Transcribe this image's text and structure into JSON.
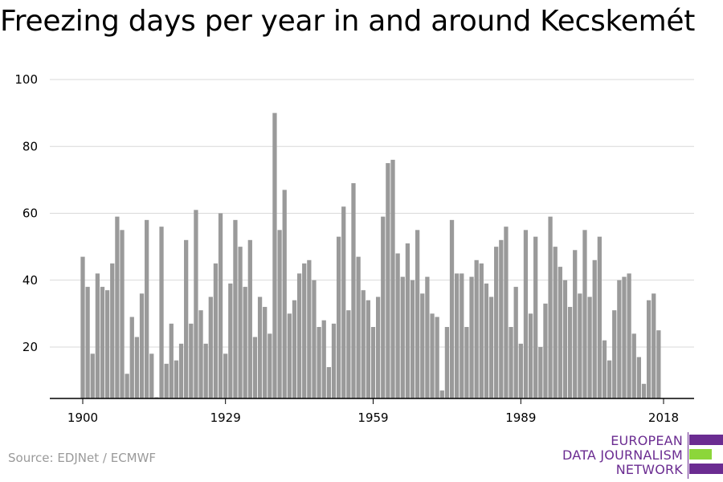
{
  "header": {
    "title": "Freezing days per year in and around Kecskemét"
  },
  "footer": {
    "source": "Source: EDJNet / ECMWF"
  },
  "logo": {
    "line1": "EUROPEAN",
    "line2": "DATA JOURNALISM",
    "line3": "NETWORK",
    "colors": {
      "purple": "#6b2c91",
      "green": "#8cd63a"
    }
  },
  "chart_data": {
    "type": "bar",
    "title": "Freezing days per year in and around Kecskemét",
    "xlabel": "",
    "ylabel": "",
    "x_start": 1900,
    "x_end": 2018,
    "xticks": [
      1900,
      1929,
      1959,
      1989,
      2018
    ],
    "yticks": [
      20,
      40,
      60,
      80,
      100
    ],
    "ylim": [
      5,
      100
    ],
    "grid": true,
    "bar_color": "#9a9a9a",
    "values": [
      47,
      38,
      18,
      42,
      38,
      37,
      45,
      59,
      55,
      12,
      29,
      23,
      36,
      58,
      18,
      5,
      56,
      15,
      27,
      16,
      21,
      52,
      27,
      61,
      31,
      21,
      35,
      45,
      60,
      18,
      39,
      58,
      50,
      38,
      52,
      23,
      35,
      32,
      24,
      90,
      55,
      67,
      30,
      34,
      42,
      45,
      46,
      40,
      26,
      28,
      14,
      27,
      53,
      62,
      31,
      69,
      47,
      37,
      34,
      26,
      35,
      59,
      75,
      76,
      48,
      41,
      51,
      40,
      55,
      36,
      41,
      30,
      29,
      7,
      26,
      58,
      42,
      42,
      26,
      41,
      46,
      45,
      39,
      35,
      50,
      52,
      56,
      26,
      38,
      21,
      55,
      30,
      53,
      20,
      33,
      59,
      50,
      44,
      40,
      32,
      49,
      36,
      55,
      35,
      46,
      53,
      22,
      16,
      31,
      40,
      41,
      42,
      24,
      17,
      9,
      34,
      36,
      25
    ]
  }
}
